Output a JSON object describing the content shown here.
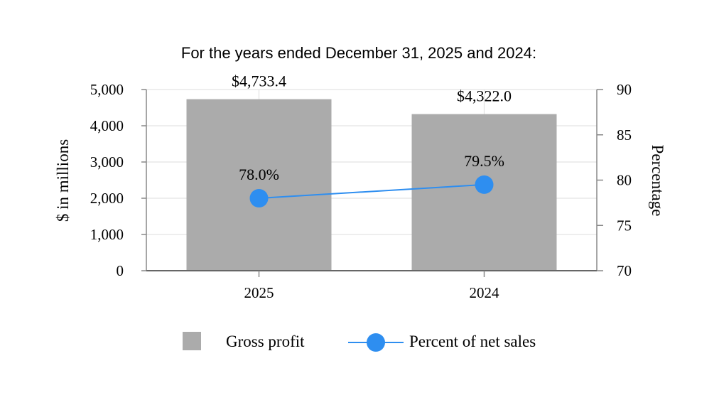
{
  "chart_data": {
    "type": "bar",
    "title": "For the years ended December 31, 2025 and 2024:",
    "categories": [
      "2025",
      "2024"
    ],
    "ylabel": "$ in millions",
    "y2label": "Percentage",
    "ylim": [
      0,
      5000
    ],
    "y2lim": [
      70,
      90
    ],
    "yticks": [
      "0",
      "1,000",
      "2,000",
      "3,000",
      "4,000",
      "5,000"
    ],
    "y2ticks": [
      "70",
      "75",
      "80",
      "85",
      "90"
    ],
    "grid": true,
    "legend_position": "bottom",
    "series": [
      {
        "name": "Gross profit",
        "type": "bar",
        "axis": "left",
        "values": [
          4733.4,
          4322.0
        ],
        "labels": [
          "$4,733.4",
          "$4,322.0"
        ],
        "color": "#ababab"
      },
      {
        "name": "Percent of net sales",
        "type": "line",
        "axis": "right",
        "values": [
          78.0,
          79.5
        ],
        "labels": [
          "78.0%",
          "79.5%"
        ],
        "color": "#2e8ef0"
      }
    ]
  }
}
